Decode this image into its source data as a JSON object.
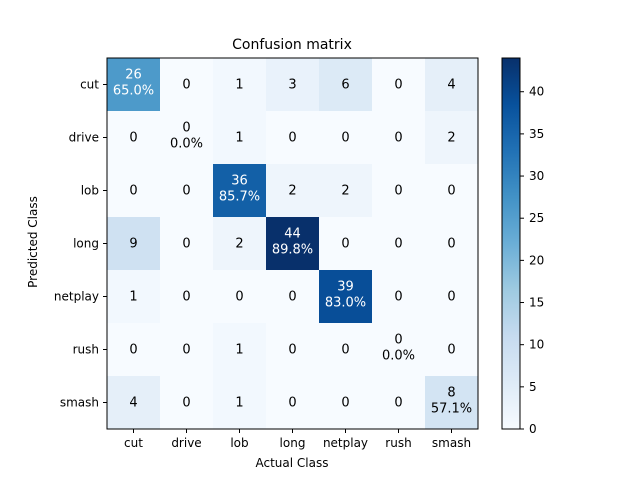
{
  "chart_data": {
    "type": "heatmap",
    "title": "Confusion matrix",
    "xlabel": "Actual Class",
    "ylabel": "Predicted Class",
    "x_categories": [
      "cut",
      "drive",
      "lob",
      "long",
      "netplay",
      "rush",
      "smash"
    ],
    "y_categories": [
      "cut",
      "drive",
      "lob",
      "long",
      "netplay",
      "rush",
      "smash"
    ],
    "values": [
      [
        26,
        0,
        1,
        3,
        6,
        0,
        4
      ],
      [
        0,
        0,
        1,
        0,
        0,
        0,
        2
      ],
      [
        0,
        0,
        36,
        2,
        2,
        0,
        0
      ],
      [
        9,
        0,
        2,
        44,
        0,
        0,
        0
      ],
      [
        1,
        0,
        0,
        0,
        39,
        0,
        0
      ],
      [
        0,
        0,
        1,
        0,
        0,
        0,
        0
      ],
      [
        4,
        0,
        1,
        0,
        0,
        0,
        8
      ]
    ],
    "diagonal_percent_labels": [
      "65.0%",
      "0.0%",
      "85.7%",
      "89.8%",
      "83.0%",
      "0.0%",
      "57.1%"
    ],
    "colormap": "Blues",
    "color_range": [
      0,
      44
    ],
    "colorbar_ticks": [
      0,
      5,
      10,
      15,
      20,
      25,
      30,
      35,
      40
    ],
    "grid": false
  }
}
